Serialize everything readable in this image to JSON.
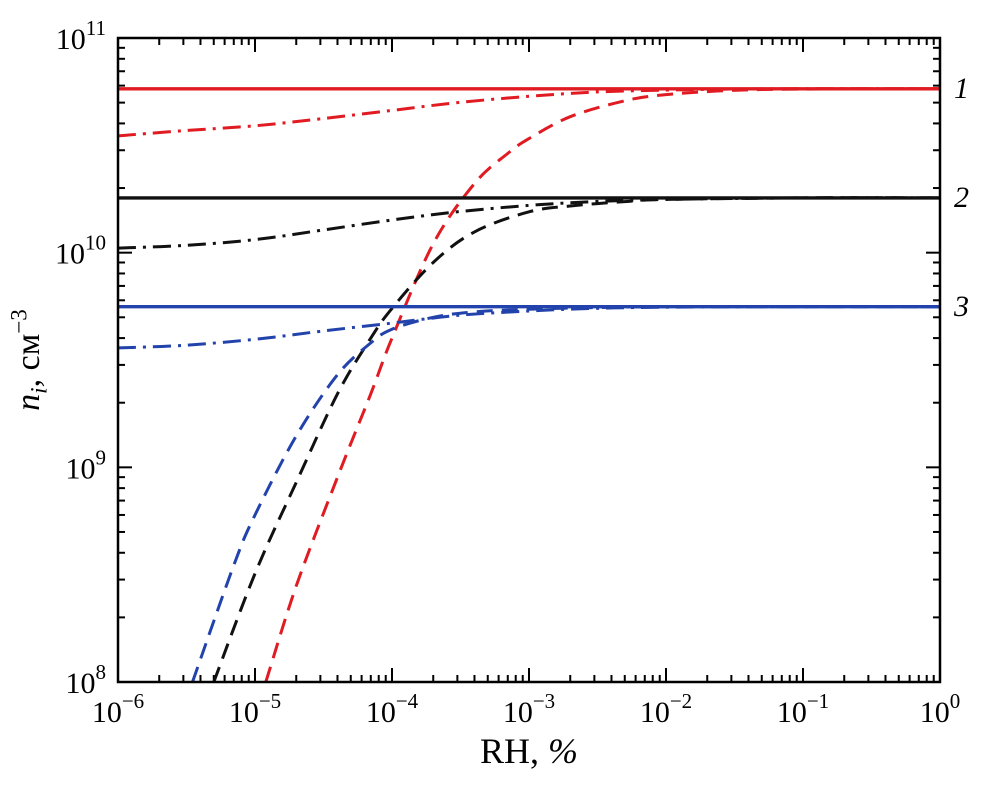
{
  "chart_data": {
    "type": "line",
    "title": "",
    "xlabel": "RH, %",
    "xlabel_parts": {
      "prefix": "RH, ",
      "percent": "%"
    },
    "ylabel": "n_i, см^−3",
    "ylabel_parts": {
      "variable": "n",
      "subscript": "i",
      "unit_prefix": ", см",
      "unit_exponent": "−3"
    },
    "x_scale": "log",
    "y_scale": "log",
    "xlim": [
      1e-06,
      1
    ],
    "ylim": [
      100000000.0,
      100000000000.0
    ],
    "x_tick_exponents": [
      -6,
      -5,
      -4,
      -3,
      -2,
      -1,
      0
    ],
    "y_tick_exponents": [
      8,
      9,
      10,
      11
    ],
    "grid": false,
    "legend": "none",
    "frame_color": "#000000",
    "curve_labels": [
      {
        "text": "1",
        "y": 58000000000.0
      },
      {
        "text": "2",
        "y": 18000000000.0
      },
      {
        "text": "3",
        "y": 5600000000.0
      }
    ],
    "series": [
      {
        "name": "series-1-solid",
        "color": "#e01b22",
        "style": "solid",
        "x": [
          1e-06,
          1e-05,
          0.0001,
          0.001,
          0.01,
          0.1,
          1
        ],
        "y": [
          58000000000.0,
          58000000000.0,
          58000000000.0,
          58000000000.0,
          58000000000.0,
          58000000000.0,
          58000000000.0
        ]
      },
      {
        "name": "series-1-dashdot",
        "color": "#e01b22",
        "style": "dashdot",
        "x": [
          1e-06,
          3e-06,
          1e-05,
          3e-05,
          0.0001,
          0.0003,
          0.001,
          0.003,
          0.01,
          0.03,
          0.1,
          1
        ],
        "y": [
          35000000000.0,
          37000000000.0,
          39000000000.0,
          42000000000.0,
          46000000000.0,
          50000000000.0,
          53500000000.0,
          56000000000.0,
          57200000000.0,
          57800000000.0,
          58000000000.0,
          58000000000.0
        ]
      },
      {
        "name": "series-1-dashed",
        "color": "#e01b22",
        "style": "dash",
        "x": [
          1.2e-05,
          2e-05,
          4e-05,
          7e-05,
          0.0001,
          0.0002,
          0.0004,
          0.0007,
          0.001,
          0.002,
          0.005,
          0.01,
          0.03,
          0.1,
          1
        ],
        "y": [
          100000000.0,
          280000000.0,
          900000000.0,
          2200000000.0,
          4000000000.0,
          11000000000.0,
          21000000000.0,
          29000000000.0,
          34000000000.0,
          43000000000.0,
          51000000000.0,
          54500000000.0,
          57000000000.0,
          57800000000.0,
          58000000000.0
        ]
      },
      {
        "name": "series-2-solid",
        "color": "#111111",
        "style": "solid",
        "x": [
          1e-06,
          1e-05,
          0.0001,
          0.001,
          0.01,
          0.1,
          1
        ],
        "y": [
          18000000000.0,
          18000000000.0,
          18000000000.0,
          18000000000.0,
          18000000000.0,
          18000000000.0,
          18000000000.0
        ]
      },
      {
        "name": "series-2-dashdot",
        "color": "#111111",
        "style": "dashdot",
        "x": [
          1e-06,
          3e-06,
          1e-05,
          3e-05,
          0.0001,
          0.0003,
          0.001,
          0.003,
          0.01,
          0.1,
          1
        ],
        "y": [
          10500000000.0,
          10800000000.0,
          11500000000.0,
          12700000000.0,
          14200000000.0,
          15500000000.0,
          16600000000.0,
          17300000000.0,
          17700000000.0,
          18000000000.0,
          18000000000.0
        ]
      },
      {
        "name": "series-2-dashed",
        "color": "#111111",
        "style": "dash",
        "x": [
          5e-06,
          1e-05,
          2e-05,
          4e-05,
          7e-05,
          0.0001,
          0.0002,
          0.0004,
          0.001,
          0.002,
          0.005,
          0.01,
          0.1,
          1
        ],
        "y": [
          100000000.0,
          320000000.0,
          850000000.0,
          2200000000.0,
          4000000000.0,
          5500000000.0,
          9000000000.0,
          12500000000.0,
          15500000000.0,
          16500000000.0,
          17300000000.0,
          17700000000.0,
          18000000000.0,
          18000000000.0
        ]
      },
      {
        "name": "series-3-solid",
        "color": "#2243ab",
        "style": "solid",
        "x": [
          1e-06,
          1e-05,
          0.0001,
          0.001,
          0.01,
          0.1,
          1
        ],
        "y": [
          5600000000.0,
          5600000000.0,
          5600000000.0,
          5600000000.0,
          5600000000.0,
          5600000000.0,
          5600000000.0
        ]
      },
      {
        "name": "series-3-dashdot",
        "color": "#2243ab",
        "style": "dashdot",
        "x": [
          1e-06,
          3e-06,
          1e-05,
          3e-05,
          0.0001,
          0.0003,
          0.001,
          0.003,
          0.01,
          0.1,
          1
        ],
        "y": [
          3600000000.0,
          3700000000.0,
          3950000000.0,
          4300000000.0,
          4700000000.0,
          5100000000.0,
          5350000000.0,
          5500000000.0,
          5570000000.0,
          5600000000.0,
          5600000000.0
        ]
      },
      {
        "name": "series-3-dashed",
        "color": "#2243ab",
        "style": "dash",
        "x": [
          3.5e-06,
          7e-06,
          1e-05,
          2e-05,
          4e-05,
          7e-05,
          0.0001,
          0.0002,
          0.0004,
          0.001,
          0.003,
          0.01,
          0.1,
          1
        ],
        "y": [
          100000000.0,
          350000000.0,
          600000000.0,
          1400000000.0,
          2700000000.0,
          3800000000.0,
          4400000000.0,
          5000000000.0,
          5300000000.0,
          5450000000.0,
          5550000000.0,
          5600000000.0,
          5600000000.0,
          5600000000.0
        ]
      }
    ]
  }
}
